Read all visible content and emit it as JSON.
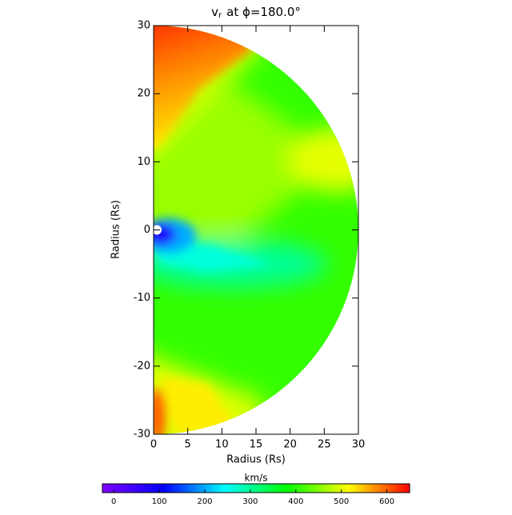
{
  "chart_data": {
    "type": "heatmap",
    "title_main": "v",
    "title_subscript": "r",
    "title_tail": "at ϕ=180.0°",
    "x_label": "Radius (Rs)",
    "y_label": "Radius (Rs)",
    "xlim": [
      0,
      30
    ],
    "ylim": [
      -30,
      30
    ],
    "xticks": [
      0,
      5,
      10,
      15,
      20,
      25,
      30
    ],
    "yticks": [
      -30,
      -20,
      -10,
      0,
      10,
      20,
      30
    ],
    "colorbar": {
      "label": "km/s",
      "clim": [
        -25,
        650
      ],
      "ticks": [
        0,
        100,
        200,
        300,
        400,
        500,
        600
      ],
      "colormap": [
        "#7f00ff",
        "#0000ff",
        "#00ffff",
        "#00ff00",
        "#ffff00",
        "#ff0000"
      ]
    }
  }
}
